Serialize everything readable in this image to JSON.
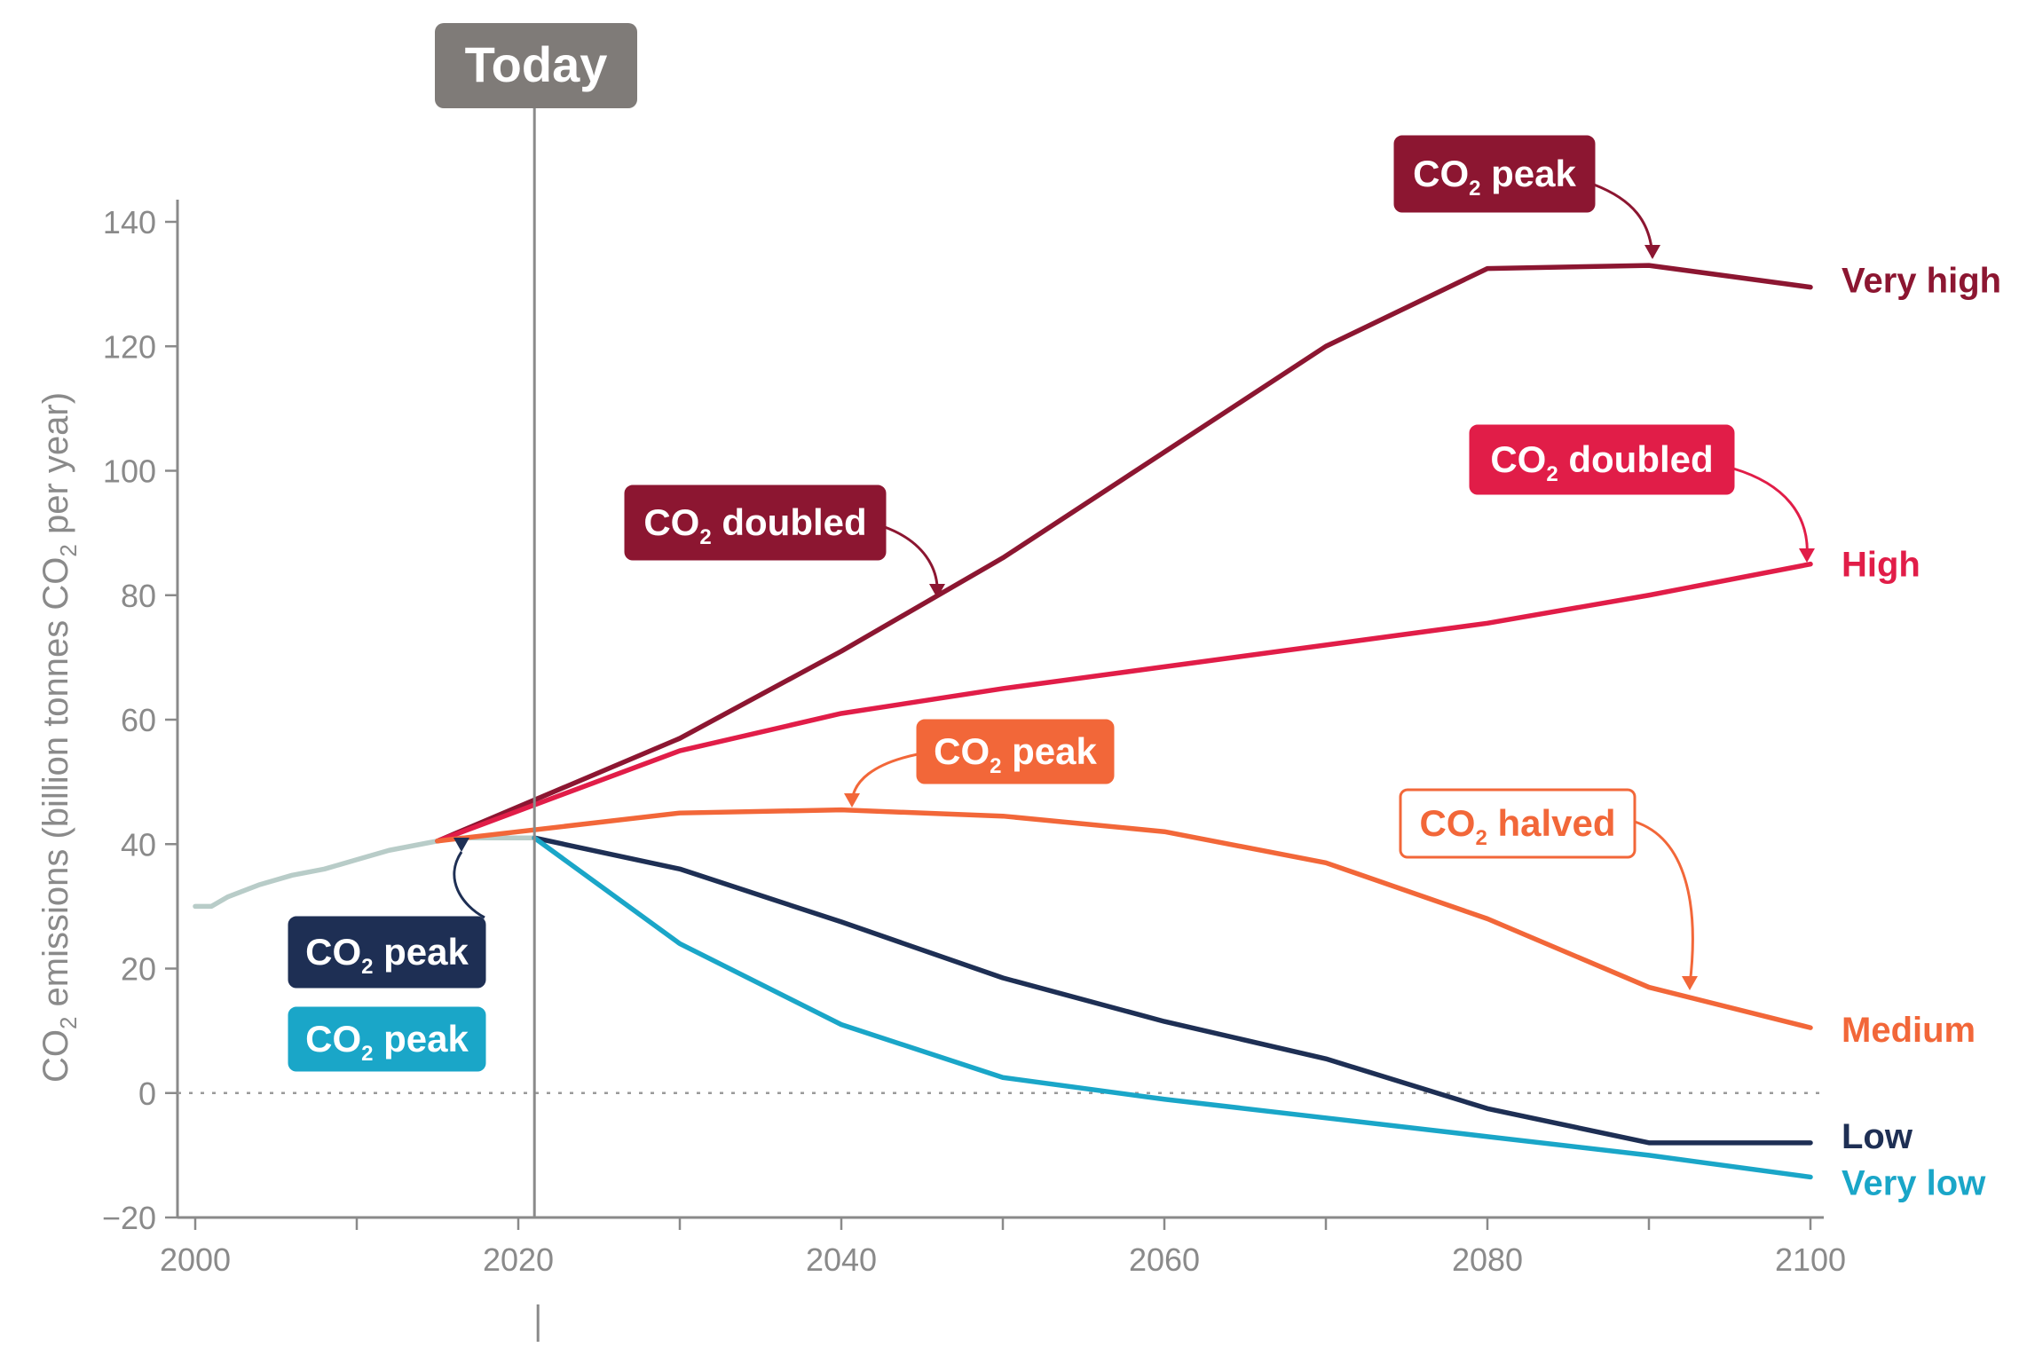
{
  "chart_data": {
    "type": "line",
    "title": "",
    "xlabel": "",
    "ylabel": "CO2 emissions (billion tonnes CO2 per year)",
    "xlim": [
      2000,
      2100
    ],
    "ylim": [
      -20,
      140
    ],
    "x_ticks": [
      2000,
      2020,
      2040,
      2060,
      2080,
      2100
    ],
    "x_minor_ticks": [
      2000,
      2010,
      2020,
      2030,
      2040,
      2050,
      2060,
      2070,
      2080,
      2090,
      2100
    ],
    "y_ticks": [
      -20,
      0,
      20,
      40,
      60,
      80,
      100,
      120,
      140
    ],
    "y_tick_labels": [
      "−20",
      "0",
      "20",
      "40",
      "60",
      "80",
      "100",
      "120",
      "140"
    ],
    "today": {
      "label": "Today",
      "x": 2021
    },
    "historical": {
      "color": "#b8ccc8",
      "x": [
        2000,
        2001,
        2002,
        2004,
        2006,
        2008,
        2010,
        2012,
        2014,
        2016,
        2018,
        2020,
        2021
      ],
      "y": [
        30,
        30,
        31.5,
        33.5,
        35,
        36,
        37.5,
        39,
        40,
        41,
        41,
        41,
        41
      ]
    },
    "series": [
      {
        "name": "Very high",
        "color": "#8c1631",
        "x": [
          2015,
          2030,
          2040,
          2050,
          2060,
          2070,
          2080,
          2090,
          2100
        ],
        "y": [
          40.5,
          57,
          71,
          86,
          103,
          120,
          132.5,
          133,
          129.5
        ]
      },
      {
        "name": "High",
        "color": "#e11d48",
        "x": [
          2015,
          2030,
          2040,
          2050,
          2060,
          2070,
          2080,
          2090,
          2100
        ],
        "y": [
          40.5,
          55,
          61,
          65,
          68.5,
          72,
          75.5,
          80,
          85
        ]
      },
      {
        "name": "Medium",
        "color": "#f26739",
        "x": [
          2015,
          2030,
          2040,
          2050,
          2060,
          2070,
          2080,
          2090,
          2100
        ],
        "y": [
          40.5,
          45,
          45.5,
          44.5,
          42,
          37,
          28,
          17,
          10.5
        ]
      },
      {
        "name": "Low",
        "color": "#1e2f54",
        "x": [
          2021,
          2030,
          2040,
          2050,
          2060,
          2070,
          2080,
          2090,
          2100
        ],
        "y": [
          41,
          36,
          27.5,
          18.5,
          11.5,
          5.5,
          -2.5,
          -8,
          -8
        ]
      },
      {
        "name": "Very low",
        "color": "#1aa6c8",
        "x": [
          2021,
          2030,
          2040,
          2050,
          2060,
          2070,
          2080,
          2090,
          2100
        ],
        "y": [
          41,
          24,
          11,
          2.5,
          -1,
          -4,
          -7,
          -10,
          -13.5
        ]
      }
    ],
    "annotations": [
      {
        "text": "CO",
        "sub": "2",
        "text2": " peak",
        "box_color": "#8c1631",
        "text_color": "#ffffff",
        "outline": false
      },
      {
        "text": "CO",
        "sub": "2",
        "text2": " doubled",
        "box_color": "#e11d48",
        "text_color": "#ffffff",
        "outline": false
      },
      {
        "text": "CO",
        "sub": "2",
        "text2": " doubled",
        "box_color": "#8c1631",
        "text_color": "#ffffff",
        "outline": false
      },
      {
        "text": "CO",
        "sub": "2",
        "text2": " peak",
        "box_color": "#f26739",
        "text_color": "#ffffff",
        "outline": false
      },
      {
        "text": "CO",
        "sub": "2",
        "text2": " halved",
        "box_color": "#ffffff",
        "text_color": "#f26739",
        "outline": true
      },
      {
        "text": "CO",
        "sub": "2",
        "text2": " peak",
        "box_color": "#1e2f54",
        "text_color": "#ffffff",
        "outline": false
      },
      {
        "text": "CO",
        "sub": "2",
        "text2": " peak",
        "box_color": "#1aa6c8",
        "text_color": "#ffffff",
        "outline": false
      }
    ],
    "grid": false,
    "legend": "inline-right"
  }
}
